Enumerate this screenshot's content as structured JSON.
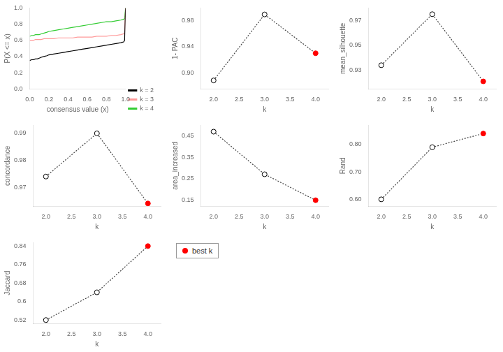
{
  "chart_data": [
    {
      "type": "line",
      "x_label": "consensus value (x)",
      "y_label": "P(X <= x)",
      "x": [
        0.0,
        0.02,
        0.04,
        0.06,
        0.08,
        0.1,
        0.12,
        0.15,
        0.18,
        0.2,
        0.25,
        0.3,
        0.35,
        0.4,
        0.45,
        0.5,
        0.55,
        0.6,
        0.65,
        0.7,
        0.75,
        0.8,
        0.85,
        0.9,
        0.95,
        0.98,
        0.99,
        1.0
      ],
      "series": [
        {
          "name": "k = 2",
          "color": "#000000",
          "values": [
            0.35,
            0.36,
            0.36,
            0.37,
            0.37,
            0.38,
            0.39,
            0.4,
            0.41,
            0.42,
            0.43,
            0.44,
            0.45,
            0.46,
            0.47,
            0.48,
            0.49,
            0.5,
            0.51,
            0.52,
            0.53,
            0.54,
            0.55,
            0.56,
            0.57,
            0.58,
            0.6,
            1.0
          ]
        },
        {
          "name": "k = 3",
          "color": "#FF9999",
          "values": [
            0.6,
            0.6,
            0.6,
            0.61,
            0.61,
            0.61,
            0.61,
            0.62,
            0.62,
            0.62,
            0.62,
            0.63,
            0.63,
            0.63,
            0.63,
            0.64,
            0.64,
            0.64,
            0.64,
            0.65,
            0.65,
            0.65,
            0.66,
            0.66,
            0.67,
            0.68,
            0.68,
            1.0
          ]
        },
        {
          "name": "k = 4",
          "color": "#33CC33",
          "values": [
            0.65,
            0.66,
            0.66,
            0.67,
            0.67,
            0.67,
            0.68,
            0.69,
            0.7,
            0.71,
            0.72,
            0.73,
            0.74,
            0.75,
            0.76,
            0.77,
            0.78,
            0.79,
            0.8,
            0.81,
            0.82,
            0.83,
            0.83,
            0.84,
            0.85,
            0.86,
            0.87,
            1.0
          ]
        }
      ],
      "xlim": [
        0.0,
        1.0
      ],
      "ylim": [
        0.0,
        1.0
      ],
      "xticks": [
        {
          "value": 0.0,
          "label": "0.0"
        },
        0.2,
        0.4,
        0.6,
        0.8,
        {
          "value": 1.0,
          "label": "1.0"
        }
      ],
      "yticks": [
        {
          "value": 0.0,
          "label": "0.0"
        },
        0.2,
        0.4,
        0.6,
        0.8,
        {
          "value": 1.0,
          "label": "1.0"
        }
      ],
      "legend": "lower right",
      "grid": false
    },
    {
      "type": "line",
      "x_label": "k",
      "y_label": "1- PAC",
      "x": [
        2,
        3,
        4
      ],
      "series": [
        {
          "values": [
            0.888,
            0.99,
            0.93
          ],
          "color": "#444444",
          "colors": [
            "#ffffff",
            "#ffffff",
            "#FF0000"
          ],
          "line_style": "dotted",
          "marker": "circle"
        }
      ],
      "xlim": [
        1.75,
        4.25
      ],
      "xticks": [
        {
          "value": 2,
          "label": "2.0"
        },
        2.5,
        {
          "value": 3,
          "label": "3.0"
        },
        3.5,
        {
          "value": 4,
          "label": "4.0"
        }
      ],
      "ylim": [
        0.875,
        1.0
      ],
      "yticks": [
        {
          "value": 0.9,
          "label": "0.90"
        },
        0.94,
        0.98
      ],
      "grid": false
    },
    {
      "type": "line",
      "x_label": "k",
      "y_label": "mean_silhouette",
      "x": [
        2,
        3,
        4
      ],
      "series": [
        {
          "values": [
            0.934,
            0.975,
            0.921
          ],
          "color": "#444444",
          "colors": [
            "#ffffff",
            "#ffffff",
            "#FF0000"
          ],
          "line_style": "dotted",
          "marker": "circle"
        }
      ],
      "xlim": [
        1.75,
        4.25
      ],
      "xticks": [
        {
          "value": 2,
          "label": "2.0"
        },
        2.5,
        {
          "value": 3,
          "label": "3.0"
        },
        3.5,
        {
          "value": 4,
          "label": "4.0"
        }
      ],
      "ylim": [
        0.915,
        0.98
      ],
      "yticks": [
        0.93,
        0.95,
        0.97
      ],
      "grid": false
    },
    {
      "type": "line",
      "x_label": "k",
      "y_label": "concordance",
      "x": [
        2,
        3,
        4
      ],
      "series": [
        {
          "values": [
            0.974,
            0.99,
            0.964
          ],
          "color": "#444444",
          "colors": [
            "#ffffff",
            "#ffffff",
            "#FF0000"
          ],
          "line_style": "dotted",
          "marker": "circle"
        }
      ],
      "xlim": [
        1.75,
        4.25
      ],
      "xticks": [
        {
          "value": 2,
          "label": "2.0"
        },
        2.5,
        {
          "value": 3,
          "label": "3.0"
        },
        3.5,
        {
          "value": 4,
          "label": "4.0"
        }
      ],
      "ylim": [
        0.963,
        0.993
      ],
      "yticks": [
        0.97,
        0.98,
        0.99
      ],
      "grid": false
    },
    {
      "type": "line",
      "x_label": "k",
      "y_label": "area_increased",
      "x": [
        2,
        3,
        4
      ],
      "series": [
        {
          "values": [
            0.47,
            0.27,
            0.148
          ],
          "color": "#444444",
          "colors": [
            "#ffffff",
            "#ffffff",
            "#FF0000"
          ],
          "line_style": "dotted",
          "marker": "circle"
        }
      ],
      "xlim": [
        1.75,
        4.25
      ],
      "xticks": [
        {
          "value": 2,
          "label": "2.0"
        },
        2.5,
        {
          "value": 3,
          "label": "3.0"
        },
        3.5,
        {
          "value": 4,
          "label": "4.0"
        }
      ],
      "ylim": [
        0.12,
        0.5
      ],
      "yticks": [
        0.15,
        0.25,
        0.35,
        0.45
      ],
      "grid": false
    },
    {
      "type": "line",
      "x_label": "k",
      "y_label": "Rand",
      "x": [
        2,
        3,
        4
      ],
      "series": [
        {
          "values": [
            0.6,
            0.79,
            0.84
          ],
          "color": "#444444",
          "colors": [
            "#ffffff",
            "#ffffff",
            "#FF0000"
          ],
          "line_style": "dotted",
          "marker": "circle"
        }
      ],
      "xlim": [
        1.75,
        4.25
      ],
      "xticks": [
        {
          "value": 2,
          "label": "2.0"
        },
        2.5,
        {
          "value": 3,
          "label": "3.0"
        },
        3.5,
        {
          "value": 4,
          "label": "4.0"
        }
      ],
      "ylim": [
        0.575,
        0.87
      ],
      "yticks": [
        {
          "value": 0.6,
          "label": "0.60"
        },
        {
          "value": 0.7,
          "label": "0.70"
        },
        {
          "value": 0.8,
          "label": "0.80"
        }
      ],
      "grid": false
    },
    {
      "type": "line",
      "x_label": "k",
      "y_label": "Jaccard",
      "x": [
        2,
        3,
        4
      ],
      "series": [
        {
          "values": [
            0.52,
            0.64,
            0.84
          ],
          "color": "#444444",
          "colors": [
            "#ffffff",
            "#ffffff",
            "#FF0000"
          ],
          "line_style": "dotted",
          "marker": "circle"
        }
      ],
      "xlim": [
        1.75,
        4.25
      ],
      "xticks": [
        {
          "value": 2,
          "label": "2.0"
        },
        2.5,
        {
          "value": 3,
          "label": "3.0"
        },
        3.5,
        {
          "value": 4,
          "label": "4.0"
        }
      ],
      "ylim": [
        0.505,
        0.855
      ],
      "yticks": [
        0.52,
        0.6,
        0.68,
        0.76,
        0.84
      ],
      "grid": false
    },
    {
      "type": "legend",
      "legend": "upper left",
      "series": [
        {
          "name": "best k",
          "color": "#FF0000",
          "marker": "circle"
        }
      ]
    }
  ]
}
